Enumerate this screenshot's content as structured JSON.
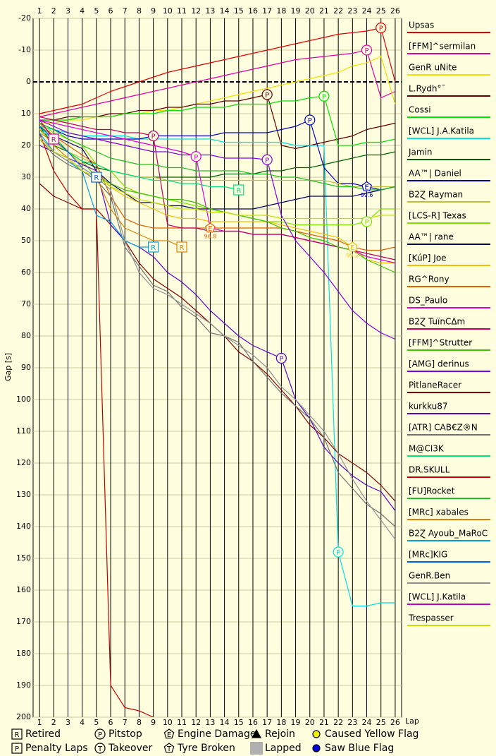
{
  "chart_data": {
    "type": "line",
    "y_label": "Gap [s]",
    "x_label": "Lap",
    "xlim": [
      0.55,
      26.45
    ],
    "ylim": [
      -20,
      200
    ],
    "x": [
      1,
      2,
      3,
      4,
      5,
      6,
      7,
      8,
      9,
      10,
      11,
      12,
      13,
      14,
      15,
      16,
      17,
      18,
      19,
      20,
      21,
      22,
      23,
      24,
      25,
      26
    ],
    "yticks": [
      -20,
      -10,
      0,
      10,
      20,
      30,
      40,
      50,
      60,
      70,
      80,
      90,
      100,
      110,
      120,
      130,
      140,
      150,
      160,
      170,
      180,
      190,
      200
    ],
    "y_inverted": true,
    "grid": true,
    "series": [
      {
        "name": "Upsas",
        "color": "#e00000",
        "values": [
          10,
          9,
          8,
          7,
          5,
          3,
          1.5,
          0,
          -1.5,
          -3,
          -4,
          -5,
          -6,
          -7,
          -8,
          -9,
          -10,
          -11,
          -12,
          -13,
          -14,
          -15,
          -15.5,
          -16,
          -17,
          0
        ]
      },
      {
        "name": "[FFM]^sermilan",
        "color": "#e000a0",
        "values": [
          11,
          10,
          9,
          8,
          7,
          6,
          5,
          4,
          3,
          2,
          1,
          0,
          -1,
          -2,
          -3,
          -4,
          -5,
          -6,
          -7,
          -7.5,
          -8,
          -8.5,
          -9,
          -10,
          5,
          3
        ]
      },
      {
        "name": "GenR uNite",
        "color": "#f0e000",
        "values": [
          13,
          13,
          12,
          12,
          11,
          11,
          10,
          10,
          9,
          9,
          8,
          7,
          6,
          5,
          4,
          3,
          2,
          1,
          0,
          -1,
          -2,
          -3,
          -5,
          -6,
          -8,
          7
        ]
      },
      {
        "name": "L.Rydh°¯",
        "color": "#600000",
        "values": [
          12,
          12,
          11,
          11,
          11,
          10,
          10,
          9,
          9,
          8,
          8,
          7,
          7,
          6,
          6,
          5,
          4,
          20,
          21,
          20,
          19,
          18,
          17,
          15,
          14,
          13
        ]
      },
      {
        "name": "Cossi",
        "color": "#00e000",
        "values": [
          12,
          12,
          12,
          11,
          11,
          11,
          10,
          10,
          10,
          9,
          9,
          8,
          8,
          8,
          7,
          7,
          7,
          6,
          6,
          5,
          4.5,
          20,
          20,
          19,
          19,
          18
        ]
      },
      {
        "name": "[WCL] J.A.Katila",
        "color": "#00e0e0",
        "values": [
          14,
          15,
          16,
          17,
          17,
          17,
          17,
          18,
          18,
          18,
          18,
          18,
          18,
          19,
          19,
          19,
          19,
          19,
          20,
          20,
          20,
          148,
          165,
          165,
          164,
          164
        ]
      },
      {
        "name": "Jamin",
        "color": "#006000",
        "values": [
          14,
          20,
          22,
          25,
          27,
          28,
          29,
          30,
          30,
          30,
          30,
          30,
          30,
          29,
          29,
          29,
          28,
          28,
          27,
          27,
          26,
          25,
          24,
          23,
          23,
          22
        ]
      },
      {
        "name": "AA™| Daniel",
        "color": "#0000c0",
        "values": [
          13,
          15,
          17,
          18,
          18,
          18,
          18,
          18,
          17,
          17,
          17,
          17,
          17,
          16,
          16,
          16,
          16,
          15,
          14,
          12,
          27,
          32,
          32,
          33,
          34,
          33
        ]
      },
      {
        "name": "B2Ɀ Rayman",
        "color": "#c0c040",
        "values": [
          16,
          19,
          22,
          24,
          26,
          28,
          29,
          30,
          30,
          31,
          31,
          31,
          31,
          31,
          31,
          31,
          31,
          31,
          31,
          31,
          31,
          32,
          33,
          33,
          33,
          33
        ]
      },
      {
        "name": "[LCS-R] Texas",
        "color": "#80e000",
        "values": [
          13,
          16,
          18,
          20,
          26,
          28,
          33,
          35,
          36,
          37,
          38,
          39,
          40,
          41,
          42,
          43,
          44,
          44,
          45,
          45,
          45,
          45,
          45,
          44,
          40,
          40
        ]
      },
      {
        "name": "AA™| rane",
        "color": "#000060",
        "values": [
          14,
          17,
          19,
          21,
          28,
          32,
          35,
          38,
          38,
          39,
          39,
          40,
          40,
          40,
          40,
          40,
          39,
          38,
          37,
          36,
          36,
          36,
          36,
          35,
          34,
          33
        ]
      },
      {
        "name": "[KúP] Joe",
        "color": "#f0c000",
        "values": [
          15,
          18,
          22,
          26,
          28,
          33,
          36,
          38,
          40,
          42,
          43,
          43,
          44,
          44,
          44,
          44,
          44,
          45,
          46,
          47,
          48,
          49,
          52,
          56,
          57,
          57
        ]
      },
      {
        "name": "RG^Rony",
        "color": "#e06000",
        "values": [
          13,
          17,
          20,
          23,
          26,
          36,
          43,
          45,
          46,
          46,
          46,
          46,
          46,
          46,
          46,
          46,
          46,
          46,
          47,
          48,
          49,
          50,
          52,
          53,
          53,
          52
        ]
      },
      {
        "name": "DS_Paulo",
        "color": "#e000e0",
        "values": [
          12,
          13,
          14,
          15,
          16,
          17,
          18,
          19,
          20,
          21,
          22,
          23.5,
          46,
          47,
          47,
          48,
          48,
          48,
          49,
          50,
          51,
          52,
          53,
          55,
          56,
          57
        ]
      },
      {
        "name": "B2Ɀ TuïnCΔm",
        "color": "#c00060",
        "values": [
          11,
          12,
          13,
          14,
          15,
          15,
          16,
          16,
          17,
          45,
          46,
          46,
          47,
          47,
          47,
          48,
          48,
          48,
          49,
          50,
          51,
          52,
          53,
          54,
          55,
          56
        ]
      },
      {
        "name": "[FFM]^Strutter",
        "color": "#40c000",
        "values": [
          14,
          17,
          22,
          25,
          30,
          32,
          34,
          35,
          36,
          37,
          37,
          38,
          40,
          41,
          42,
          43,
          44,
          46,
          47,
          49,
          50,
          52,
          53,
          56,
          58,
          60
        ]
      },
      {
        "name": "[AMG] derinus",
        "color": "#8000e0",
        "values": [
          12,
          14,
          16,
          17,
          18,
          19,
          20,
          21,
          22,
          22,
          23,
          23,
          23,
          24,
          24,
          24,
          24.5,
          42,
          50,
          55,
          60,
          66,
          72,
          76,
          79,
          81
        ]
      },
      {
        "name": "PitlaneRacer",
        "color": "#800000",
        "values": [
          32,
          36,
          38,
          40,
          40,
          45,
          50,
          57,
          62,
          65,
          68,
          72,
          76,
          80,
          85,
          88,
          92,
          97,
          102,
          108,
          112,
          117,
          120,
          123,
          127,
          132
        ]
      },
      {
        "name": "kurkku87",
        "color": "#6000c0",
        "values": [
          20,
          22,
          24,
          26,
          28,
          45,
          50,
          52,
          55,
          60,
          63,
          67,
          72,
          76,
          80,
          83,
          85,
          87,
          100,
          106,
          115,
          120,
          124,
          127,
          129,
          135
        ]
      },
      {
        "name": "[ATR] CAB€Z®N",
        "color": "#707070",
        "values": [
          18,
          23,
          26,
          28,
          31,
          36,
          52,
          58,
          64,
          66,
          71,
          74,
          79,
          80,
          82,
          88,
          93,
          98,
          102,
          106,
          112,
          123,
          128,
          133,
          136,
          140
        ]
      },
      {
        "name": "M@CI3K",
        "color": "#00e080",
        "values": [
          15,
          18,
          22,
          25,
          26,
          28,
          29,
          30,
          31,
          31,
          32,
          32,
          33,
          33,
          34,
          null,
          null,
          null,
          null,
          null,
          null,
          null,
          null,
          null,
          null,
          null
        ]
      },
      {
        "name": "DR.SKULL",
        "color": "#c00000",
        "values": [
          16,
          28,
          35,
          40,
          40,
          190,
          197,
          198,
          200,
          null,
          null,
          null,
          null,
          null,
          null,
          null,
          null,
          null,
          null,
          null,
          null,
          null,
          null,
          null,
          null,
          null
        ]
      },
      {
        "name": "[FU]Rocket",
        "color": "#20c020",
        "values": [
          13,
          15,
          18,
          20,
          22,
          24,
          25,
          26,
          26,
          27,
          27,
          28,
          28,
          28,
          28,
          29,
          29,
          30,
          30,
          31,
          32,
          33,
          33,
          34,
          34,
          33
        ]
      },
      {
        "name": "[MRc] xabales",
        "color": "#e08000",
        "values": [
          15,
          20,
          24,
          28,
          30,
          40,
          46,
          48,
          50,
          50,
          52,
          null,
          null,
          null,
          null,
          null,
          null,
          null,
          null,
          null,
          null,
          null,
          null,
          null,
          null,
          null
        ]
      },
      {
        "name": "B2Ɀ Ayoub_MaRoC",
        "color": "#00a0e0",
        "values": [
          16,
          22,
          25,
          28,
          42,
          44,
          50,
          52,
          52,
          null,
          null,
          null,
          null,
          null,
          null,
          null,
          null,
          null,
          null,
          null,
          null,
          null,
          null,
          null,
          null,
          null
        ]
      },
      {
        "name": "[MRc]KIG",
        "color": "#0060e0",
        "values": [
          14,
          18,
          22,
          27,
          30,
          null,
          null,
          null,
          null,
          null,
          null,
          null,
          null,
          null,
          null,
          null,
          null,
          null,
          null,
          null,
          null,
          null,
          null,
          null,
          null,
          null
        ]
      },
      {
        "name": "GenR.Ben",
        "color": "#909090",
        "values": [
          17,
          22,
          25,
          27,
          30,
          34,
          50,
          60,
          65,
          67,
          70,
          73,
          76,
          80,
          83,
          86,
          90,
          96,
          100,
          105,
          110,
          117,
          125,
          132,
          138,
          144
        ]
      },
      {
        "name": "[WCL] J.Katila",
        "color": "#c000c0",
        "values": [
          12,
          18,
          null,
          null,
          null,
          null,
          null,
          null,
          null,
          null,
          null,
          null,
          null,
          null,
          null,
          null,
          null,
          null,
          null,
          null,
          null,
          null,
          null,
          null,
          null,
          null
        ]
      },
      {
        "name": "Trespasser",
        "color": "#c0e000",
        "values": [
          18,
          22,
          24,
          28,
          30,
          33,
          35,
          37,
          38,
          39,
          40,
          40,
          41,
          41,
          42,
          42,
          42,
          43,
          43,
          43,
          43,
          43,
          43,
          43,
          42,
          42
        ]
      }
    ],
    "events": [
      {
        "series": 0,
        "x": 25,
        "symbol": "P",
        "shape": "circle"
      },
      {
        "series": 1,
        "x": 24,
        "symbol": "P",
        "shape": "circle"
      },
      {
        "series": 3,
        "x": 17,
        "symbol": "P",
        "shape": "circle"
      },
      {
        "series": 4,
        "x": 21,
        "symbol": "P",
        "shape": "circle"
      },
      {
        "series": 7,
        "x": 20,
        "symbol": "P",
        "shape": "circle"
      },
      {
        "series": 5,
        "x": 22,
        "symbol": "P",
        "shape": "circle"
      },
      {
        "series": 16,
        "x": 17,
        "symbol": "P",
        "shape": "circle"
      },
      {
        "series": 13,
        "x": 12,
        "symbol": "P",
        "shape": "circle"
      },
      {
        "series": 14,
        "x": 9,
        "symbol": "P",
        "shape": "circle"
      },
      {
        "series": 18,
        "x": 18,
        "symbol": "P",
        "shape": "circle"
      },
      {
        "series": 9,
        "x": 24,
        "symbol": "P",
        "shape": "circle"
      },
      {
        "series": 25,
        "x": 5,
        "symbol": "R",
        "shape": "box"
      },
      {
        "series": 23,
        "x": 11,
        "symbol": "R",
        "shape": "box"
      },
      {
        "series": 24,
        "x": 9,
        "symbol": "R",
        "shape": "box"
      },
      {
        "series": 20,
        "x": 15,
        "symbol": "R",
        "shape": "box"
      },
      {
        "series": 27,
        "x": 2,
        "symbol": "R",
        "shape": "box"
      },
      {
        "series": 12,
        "x": 13,
        "symbol": "E",
        "shape": "pentagon",
        "label": "96.8"
      },
      {
        "series": 11,
        "x": 23,
        "symbol": "E",
        "shape": "pentagon",
        "label": "99.2"
      },
      {
        "series": 7,
        "x": 24,
        "symbol": "E",
        "shape": "pentagon",
        "label": "99.6"
      }
    ],
    "key": [
      {
        "symbol": "R",
        "shape": "box",
        "label": "Retired"
      },
      {
        "symbol": "P",
        "shape": "circle",
        "label": "Pitstop"
      },
      {
        "symbol": "E",
        "shape": "pentagon",
        "label": "Engine Damage"
      },
      {
        "shape": "triangle",
        "label": "Rejoin"
      },
      {
        "shape": "dot",
        "color": "#f0f000",
        "label": "Caused Yellow Flag"
      },
      {
        "symbol": "P",
        "shape": "box",
        "label": "Penalty Laps"
      },
      {
        "symbol": "T",
        "shape": "circle",
        "label": "Takeover"
      },
      {
        "symbol": "T",
        "shape": "pentagon",
        "label": "Tyre Broken"
      },
      {
        "shape": "square",
        "color": "#b0b0b0",
        "label": "Lapped"
      },
      {
        "shape": "dot",
        "color": "#0000e0",
        "label": "Saw Blue Flag"
      }
    ]
  }
}
